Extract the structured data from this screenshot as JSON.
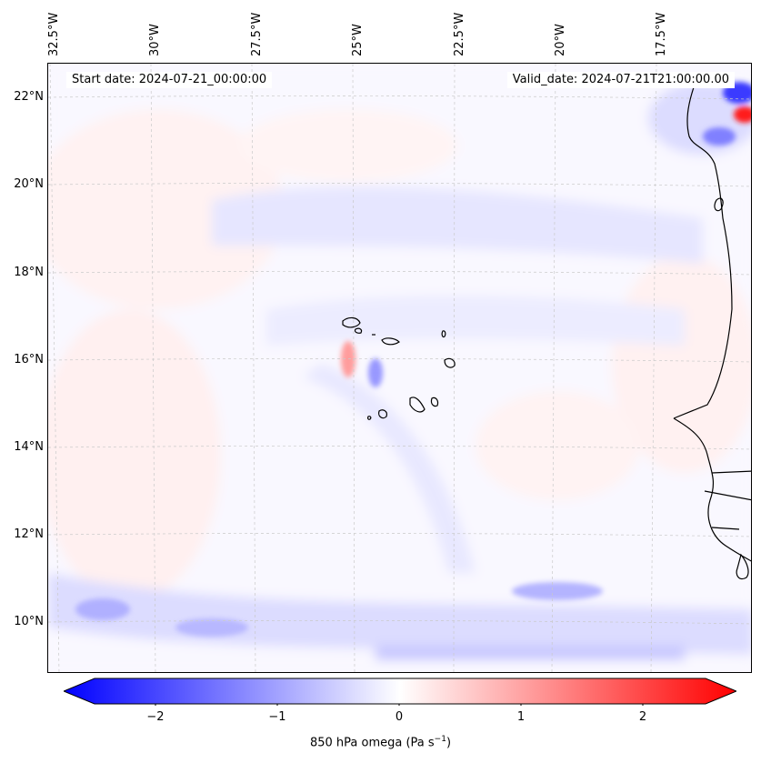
{
  "map": {
    "start_label": "Start date: 2024-07-21_00:00:00",
    "valid_label": "Valid_date: 2024-07-21T21:00:00.00",
    "lon_labels": [
      "32.5°W",
      "30°W",
      "27.5°W",
      "25°W",
      "22.5°W",
      "20°W",
      "17.5°W"
    ],
    "lat_labels": [
      "22°N",
      "20°N",
      "18°N",
      "16°N",
      "14°N",
      "12°N",
      "10°N"
    ]
  },
  "colorbar": {
    "tick_labels": [
      "−2",
      "−1",
      "0",
      "1",
      "2"
    ],
    "label_text": "850 hPa omega (Pa s",
    "label_sup": "−1",
    "label_close": ")",
    "colors": {
      "neg": "#0000ff",
      "zero": "#ffffff",
      "pos": "#ff0000"
    }
  }
}
